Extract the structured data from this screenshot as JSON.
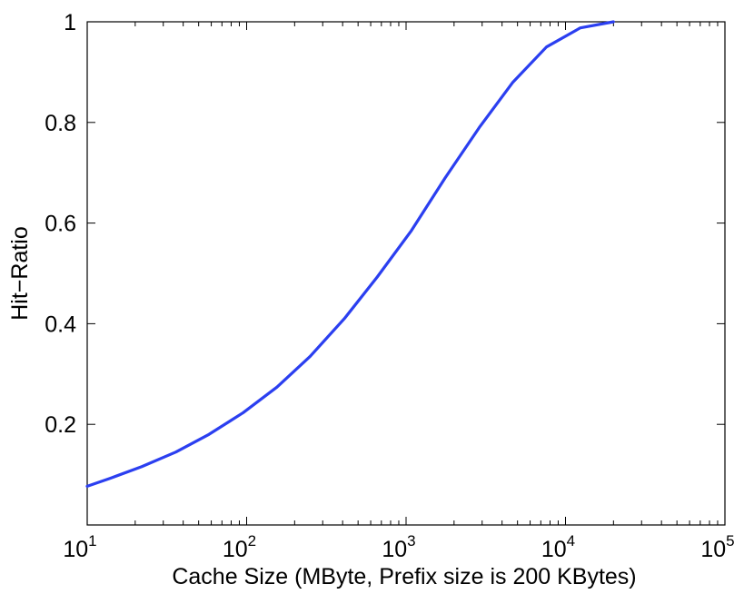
{
  "chart_data": {
    "type": "line",
    "title": "",
    "xlabel": "Cache Size (MByte, Prefix size is 200 KBytes)",
    "ylabel": "Hit−Ratio",
    "xscale": "log",
    "xlim": [
      10,
      100000
    ],
    "ylim": [
      0,
      1
    ],
    "grid": false,
    "legend": "none",
    "x_ticks": [
      {
        "base": "10",
        "exp": "1"
      },
      {
        "base": "10",
        "exp": "2"
      },
      {
        "base": "10",
        "exp": "3"
      },
      {
        "base": "10",
        "exp": "4"
      },
      {
        "base": "10",
        "exp": "5"
      }
    ],
    "y_ticks": [
      "0.2",
      "0.4",
      "0.6",
      "0.8",
      "1"
    ],
    "series": [
      {
        "color": "#2b3ff0",
        "x": [
          10,
          14,
          22,
          36,
          58,
          95,
          155,
          250,
          410,
          660,
          1080,
          1760,
          2880,
          4680,
          7600,
          12400,
          20000
        ],
        "y": [
          0.077,
          0.093,
          0.116,
          0.145,
          0.18,
          0.223,
          0.274,
          0.335,
          0.41,
          0.493,
          0.585,
          0.69,
          0.79,
          0.88,
          0.95,
          0.988,
          1.0
        ]
      }
    ]
  }
}
